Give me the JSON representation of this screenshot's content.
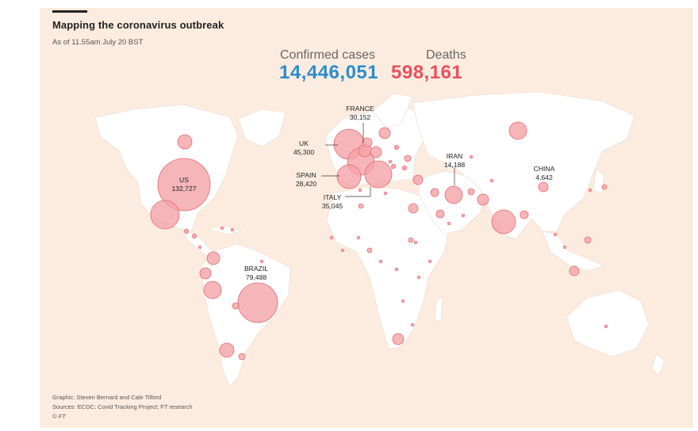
{
  "header": {
    "title": "Mapping the coronavirus outbreak",
    "subtitle": "As of 11.55am July 20 BST"
  },
  "stats": {
    "cases_label": "Confirmed cases",
    "cases_value": "14,446,051",
    "deaths_label": "Deaths",
    "deaths_value": "598,161"
  },
  "colors": {
    "background": "#fcece0",
    "land": "#ffffff",
    "cases_blue": "#2a8ccb",
    "deaths_red": "#e8505b",
    "bubble_fill": "#f4a2a7"
  },
  "countries": [
    {
      "name": "US",
      "deaths": "132,727"
    },
    {
      "name": "BRAZIL",
      "deaths": "79,488"
    },
    {
      "name": "UK",
      "deaths": "45,300"
    },
    {
      "name": "ITALY",
      "deaths": "35,045"
    },
    {
      "name": "FRANCE",
      "deaths": "30,152"
    },
    {
      "name": "SPAIN",
      "deaths": "28,420"
    },
    {
      "name": "IRAN",
      "deaths": "14,188"
    },
    {
      "name": "CHINA",
      "deaths": "4,642"
    }
  ],
  "credits": {
    "graphic": "Graphic: Steven Bernard and Cale Tilford",
    "sources": "Sources: ECDC; Covid Tracking Project; FT research",
    "copyright": "© FT"
  }
}
